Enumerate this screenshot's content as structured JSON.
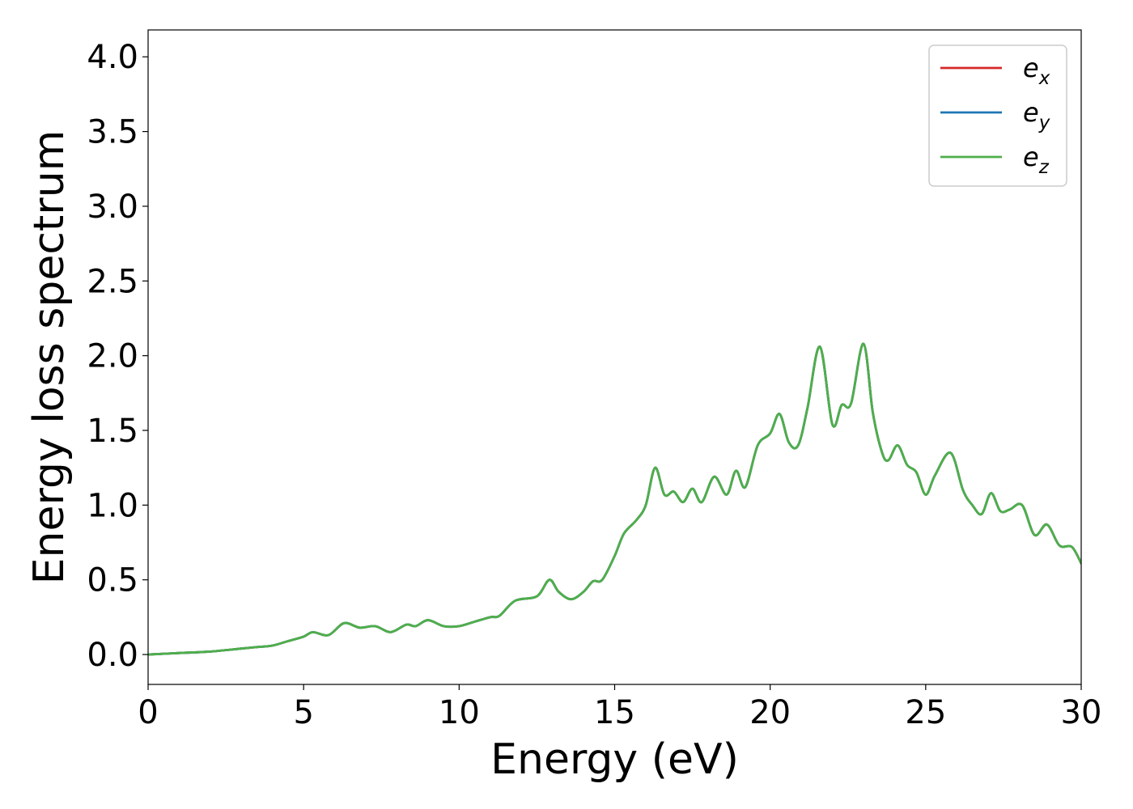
{
  "chart_data": {
    "type": "line",
    "xlabel": "Energy (eV)",
    "ylabel": "Energy loss spectrum",
    "xlim": [
      0,
      30
    ],
    "ylim": [
      -0.2,
      4.18
    ],
    "xticks": [
      0,
      5,
      10,
      15,
      20,
      25,
      30
    ],
    "xtick_labels": [
      "0",
      "5",
      "10",
      "15",
      "20",
      "25",
      "30"
    ],
    "yticks": [
      0.0,
      0.5,
      1.0,
      1.5,
      2.0,
      2.5,
      3.0,
      3.5,
      4.0
    ],
    "ytick_labels": [
      "0.0",
      "0.5",
      "1.0",
      "1.5",
      "2.0",
      "2.5",
      "3.0",
      "3.5",
      "4.0"
    ],
    "grid": false,
    "legend_position": "top-right",
    "x": [
      0,
      1,
      2,
      3,
      3.5,
      4.0,
      4.5,
      5.0,
      5.3,
      5.8,
      6.3,
      6.8,
      7.3,
      7.8,
      8.3,
      8.6,
      9.0,
      9.5,
      10.0,
      10.5,
      11.0,
      11.3,
      11.8,
      12.5,
      12.9,
      13.2,
      13.6,
      14.0,
      14.3,
      14.6,
      15.0,
      15.3,
      15.7,
      16.0,
      16.3,
      16.6,
      16.9,
      17.2,
      17.5,
      17.8,
      18.2,
      18.6,
      18.9,
      19.2,
      19.6,
      20.0,
      20.3,
      20.6,
      20.9,
      21.2,
      21.6,
      22.0,
      22.3,
      22.6,
      23.0,
      23.3,
      23.6,
      23.8,
      24.1,
      24.4,
      24.7,
      25.0,
      25.3,
      25.8,
      26.2,
      26.5,
      26.8,
      27.1,
      27.4,
      27.7,
      28.1,
      28.5,
      28.9,
      29.3,
      29.7,
      30.0
    ],
    "series": [
      {
        "name": "e_x",
        "label_base": "e",
        "label_sub": "x",
        "color": "#d62728",
        "values": [
          0.0,
          0.01,
          0.02,
          0.04,
          0.05,
          0.06,
          0.09,
          0.12,
          0.15,
          0.13,
          0.21,
          0.18,
          0.19,
          0.15,
          0.2,
          0.19,
          0.23,
          0.19,
          0.19,
          0.22,
          0.25,
          0.26,
          0.36,
          0.39,
          0.5,
          0.42,
          0.37,
          0.42,
          0.49,
          0.5,
          0.66,
          0.81,
          0.9,
          1.0,
          1.25,
          1.07,
          1.09,
          1.02,
          1.11,
          1.02,
          1.19,
          1.07,
          1.23,
          1.12,
          1.4,
          1.48,
          1.61,
          1.42,
          1.4,
          1.65,
          2.06,
          1.54,
          1.67,
          1.68,
          2.08,
          1.62,
          1.35,
          1.3,
          1.4,
          1.27,
          1.22,
          1.07,
          1.2,
          1.35,
          1.1,
          1.0,
          0.94,
          1.08,
          0.96,
          0.97,
          1.0,
          0.8,
          0.87,
          0.73,
          0.72,
          0.61
        ]
      },
      {
        "name": "e_y",
        "label_base": "e",
        "label_sub": "y",
        "color": "#1f77b4",
        "values": [
          0.0,
          0.01,
          0.02,
          0.04,
          0.05,
          0.06,
          0.09,
          0.12,
          0.15,
          0.13,
          0.21,
          0.18,
          0.19,
          0.15,
          0.2,
          0.19,
          0.23,
          0.19,
          0.19,
          0.22,
          0.25,
          0.26,
          0.36,
          0.39,
          0.5,
          0.42,
          0.37,
          0.42,
          0.49,
          0.5,
          0.66,
          0.81,
          0.9,
          1.0,
          1.25,
          1.07,
          1.09,
          1.02,
          1.11,
          1.02,
          1.19,
          1.07,
          1.23,
          1.12,
          1.4,
          1.48,
          1.61,
          1.42,
          1.4,
          1.65,
          2.06,
          1.54,
          1.67,
          1.68,
          2.08,
          1.62,
          1.35,
          1.3,
          1.4,
          1.27,
          1.22,
          1.07,
          1.2,
          1.35,
          1.1,
          1.0,
          0.94,
          1.08,
          0.96,
          0.97,
          1.0,
          0.8,
          0.87,
          0.73,
          0.72,
          0.61
        ]
      },
      {
        "name": "e_z",
        "label_base": "e",
        "label_sub": "z",
        "color": "#4daf4a",
        "values": [
          0.0,
          0.01,
          0.02,
          0.04,
          0.05,
          0.06,
          0.09,
          0.12,
          0.15,
          0.13,
          0.21,
          0.18,
          0.19,
          0.15,
          0.2,
          0.19,
          0.23,
          0.19,
          0.19,
          0.22,
          0.25,
          0.26,
          0.36,
          0.39,
          0.5,
          0.42,
          0.37,
          0.42,
          0.49,
          0.5,
          0.66,
          0.81,
          0.9,
          1.0,
          1.25,
          1.07,
          1.09,
          1.02,
          1.11,
          1.02,
          1.19,
          1.07,
          1.23,
          1.12,
          1.4,
          1.48,
          1.61,
          1.42,
          1.4,
          1.65,
          2.06,
          1.54,
          1.67,
          1.68,
          2.08,
          1.62,
          1.35,
          1.3,
          1.4,
          1.27,
          1.22,
          1.07,
          1.2,
          1.35,
          1.1,
          1.0,
          0.94,
          1.08,
          0.96,
          0.97,
          1.0,
          0.8,
          0.87,
          0.73,
          0.72,
          0.61
        ]
      }
    ]
  }
}
